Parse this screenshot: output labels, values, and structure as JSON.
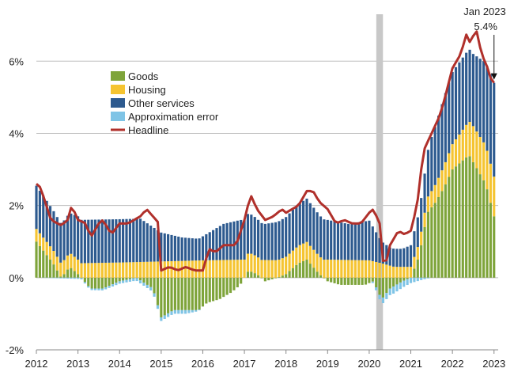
{
  "chart_data": {
    "type": "bar",
    "title": "",
    "xlabel": "",
    "ylabel": "",
    "ylim": [
      -2,
      7.3
    ],
    "y_ticks": [
      -2,
      0,
      2,
      4,
      6
    ],
    "y_tick_labels": [
      "-2%",
      "0%",
      "2%",
      "4%",
      "6%"
    ],
    "x_range": [
      2012.0,
      2023.1
    ],
    "x_ticks": [
      2012,
      2013,
      2014,
      2015,
      2016,
      2017,
      2018,
      2019,
      2020,
      2021,
      2022,
      2023
    ],
    "x_tick_labels": [
      "2012",
      "2013",
      "2014",
      "2015",
      "2016",
      "2017",
      "2018",
      "2019",
      "2020",
      "2021",
      "2022",
      "2023"
    ],
    "grid": "horizontal",
    "legend_position": "upper-left",
    "shaded_period": {
      "start": "2020-03",
      "end": "2020-04"
    },
    "annotation": {
      "line1": "Jan 2023",
      "line2": "5.4%",
      "x": 2023.0,
      "y": 5.4
    },
    "colors": {
      "goods": "#7ea43a",
      "housing": "#f5c431",
      "other_services": "#2d5a8f",
      "approx_error": "#7fc4e6",
      "headline": "#b0302b",
      "shade": "#c8c8c8",
      "grid": "#bdbdbd"
    },
    "series": [
      {
        "key": "goods",
        "name": "Goods",
        "color": "#7ea43a",
        "kind": "bar",
        "anchors": [
          [
            2012.0,
            1.0
          ],
          [
            2012.4,
            0.4
          ],
          [
            2012.6,
            0.0
          ],
          [
            2012.8,
            0.3
          ],
          [
            2013.0,
            0.1
          ],
          [
            2013.3,
            -0.3
          ],
          [
            2013.6,
            -0.3
          ],
          [
            2014.0,
            -0.1
          ],
          [
            2014.4,
            0.0
          ],
          [
            2014.8,
            -0.3
          ],
          [
            2015.0,
            -1.1
          ],
          [
            2015.3,
            -0.9
          ],
          [
            2015.6,
            -0.9
          ],
          [
            2015.9,
            -0.9
          ],
          [
            2016.1,
            -0.7
          ],
          [
            2016.4,
            -0.6
          ],
          [
            2016.7,
            -0.4
          ],
          [
            2016.9,
            -0.2
          ],
          [
            2017.1,
            0.2
          ],
          [
            2017.3,
            0.1
          ],
          [
            2017.5,
            -0.1
          ],
          [
            2017.8,
            0.0
          ],
          [
            2018.0,
            0.1
          ],
          [
            2018.3,
            0.4
          ],
          [
            2018.5,
            0.5
          ],
          [
            2018.8,
            0.1
          ],
          [
            2019.0,
            -0.1
          ],
          [
            2019.3,
            -0.2
          ],
          [
            2019.6,
            -0.2
          ],
          [
            2019.9,
            -0.2
          ],
          [
            2020.1,
            -0.1
          ],
          [
            2020.3,
            -0.6
          ],
          [
            2020.5,
            -0.3
          ],
          [
            2020.8,
            -0.1
          ],
          [
            2021.0,
            0.0
          ],
          [
            2021.2,
            0.6
          ],
          [
            2021.4,
            1.8
          ],
          [
            2021.6,
            2.1
          ],
          [
            2021.8,
            2.5
          ],
          [
            2022.0,
            3.0
          ],
          [
            2022.2,
            3.2
          ],
          [
            2022.4,
            3.4
          ],
          [
            2022.6,
            3.0
          ],
          [
            2022.8,
            2.6
          ],
          [
            2023.0,
            1.7
          ]
        ]
      },
      {
        "key": "housing",
        "name": "Housing",
        "color": "#f5c431",
        "kind": "bar",
        "anchors": [
          [
            2012.0,
            0.35
          ],
          [
            2012.5,
            0.38
          ],
          [
            2013.0,
            0.4
          ],
          [
            2014.0,
            0.42
          ],
          [
            2015.0,
            0.45
          ],
          [
            2016.0,
            0.48
          ],
          [
            2017.0,
            0.5
          ],
          [
            2018.0,
            0.48
          ],
          [
            2019.0,
            0.5
          ],
          [
            2020.0,
            0.48
          ],
          [
            2020.3,
            0.4
          ],
          [
            2020.6,
            0.3
          ],
          [
            2021.0,
            0.3
          ],
          [
            2021.5,
            0.45
          ],
          [
            2022.0,
            0.7
          ],
          [
            2022.5,
            1.0
          ],
          [
            2023.0,
            1.1
          ]
        ]
      },
      {
        "key": "other_services",
        "name": "Other services",
        "color": "#2d5a8f",
        "kind": "bar",
        "anchors": [
          [
            2012.0,
            1.2
          ],
          [
            2012.4,
            1.1
          ],
          [
            2012.8,
            1.1
          ],
          [
            2013.0,
            1.2
          ],
          [
            2013.5,
            1.2
          ],
          [
            2014.0,
            1.2
          ],
          [
            2014.5,
            1.2
          ],
          [
            2015.0,
            0.8
          ],
          [
            2015.5,
            0.65
          ],
          [
            2015.9,
            0.6
          ],
          [
            2016.2,
            0.8
          ],
          [
            2016.5,
            1.0
          ],
          [
            2016.9,
            1.1
          ],
          [
            2017.1,
            1.1
          ],
          [
            2017.5,
            1.0
          ],
          [
            2018.0,
            1.1
          ],
          [
            2018.5,
            1.2
          ],
          [
            2019.0,
            1.1
          ],
          [
            2019.5,
            1.0
          ],
          [
            2020.0,
            1.1
          ],
          [
            2020.3,
            0.6
          ],
          [
            2020.5,
            0.5
          ],
          [
            2020.8,
            0.5
          ],
          [
            2021.0,
            0.6
          ],
          [
            2021.3,
            1.0
          ],
          [
            2021.5,
            1.5
          ],
          [
            2021.8,
            1.9
          ],
          [
            2022.0,
            2.0
          ],
          [
            2022.3,
            2.0
          ],
          [
            2022.5,
            2.0
          ],
          [
            2022.8,
            2.3
          ],
          [
            2023.0,
            2.6
          ]
        ]
      },
      {
        "key": "approx_error",
        "name": "Approximation error",
        "color": "#7fc4e6",
        "kind": "bar",
        "anchors": [
          [
            2012.0,
            0.0
          ],
          [
            2015.0,
            -0.1
          ],
          [
            2015.6,
            -0.1
          ],
          [
            2016.0,
            0.0
          ],
          [
            2020.0,
            0.0
          ],
          [
            2020.3,
            -0.15
          ],
          [
            2020.6,
            -0.2
          ],
          [
            2021.0,
            -0.15
          ],
          [
            2021.3,
            -0.05
          ],
          [
            2021.5,
            0.0
          ],
          [
            2023.1,
            0.0
          ]
        ]
      },
      {
        "key": "headline",
        "name": "Headline",
        "color": "#b0302b",
        "kind": "line",
        "anchors": [
          [
            2012.0,
            2.6
          ],
          [
            2012.1,
            2.5
          ],
          [
            2012.35,
            1.6
          ],
          [
            2012.6,
            1.45
          ],
          [
            2012.75,
            1.6
          ],
          [
            2012.85,
            2.0
          ],
          [
            2013.0,
            1.6
          ],
          [
            2013.2,
            1.5
          ],
          [
            2013.3,
            1.1
          ],
          [
            2013.5,
            1.5
          ],
          [
            2013.6,
            1.6
          ],
          [
            2013.8,
            1.2
          ],
          [
            2014.0,
            1.5
          ],
          [
            2014.2,
            1.5
          ],
          [
            2014.5,
            1.7
          ],
          [
            2014.65,
            1.9
          ],
          [
            2014.8,
            1.7
          ],
          [
            2014.95,
            1.5
          ],
          [
            2015.0,
            0.2
          ],
          [
            2015.2,
            0.3
          ],
          [
            2015.4,
            0.2
          ],
          [
            2015.6,
            0.3
          ],
          [
            2015.8,
            0.2
          ],
          [
            2016.0,
            0.2
          ],
          [
            2016.15,
            0.8
          ],
          [
            2016.3,
            0.7
          ],
          [
            2016.5,
            0.9
          ],
          [
            2016.8,
            0.9
          ],
          [
            2017.0,
            1.6
          ],
          [
            2017.15,
            2.3
          ],
          [
            2017.3,
            1.9
          ],
          [
            2017.5,
            1.6
          ],
          [
            2017.7,
            1.7
          ],
          [
            2017.9,
            1.9
          ],
          [
            2018.0,
            1.8
          ],
          [
            2018.3,
            2.0
          ],
          [
            2018.5,
            2.4
          ],
          [
            2018.65,
            2.4
          ],
          [
            2018.8,
            2.1
          ],
          [
            2019.0,
            1.9
          ],
          [
            2019.2,
            1.5
          ],
          [
            2019.4,
            1.6
          ],
          [
            2019.6,
            1.5
          ],
          [
            2019.8,
            1.5
          ],
          [
            2020.0,
            1.8
          ],
          [
            2020.1,
            1.9
          ],
          [
            2020.25,
            1.5
          ],
          [
            2020.3,
            0.5
          ],
          [
            2020.4,
            0.4
          ],
          [
            2020.5,
            0.9
          ],
          [
            2020.7,
            1.3
          ],
          [
            2020.85,
            1.2
          ],
          [
            2021.0,
            1.3
          ],
          [
            2021.15,
            2.0
          ],
          [
            2021.3,
            3.5
          ],
          [
            2021.5,
            4.0
          ],
          [
            2021.7,
            4.5
          ],
          [
            2021.8,
            4.9
          ],
          [
            2022.0,
            5.8
          ],
          [
            2022.2,
            6.2
          ],
          [
            2022.35,
            6.8
          ],
          [
            2022.45,
            6.4
          ],
          [
            2022.55,
            7.0
          ],
          [
            2022.7,
            6.2
          ],
          [
            2022.85,
            5.8
          ],
          [
            2022.95,
            5.4
          ],
          [
            2023.0,
            5.4
          ]
        ]
      }
    ]
  }
}
